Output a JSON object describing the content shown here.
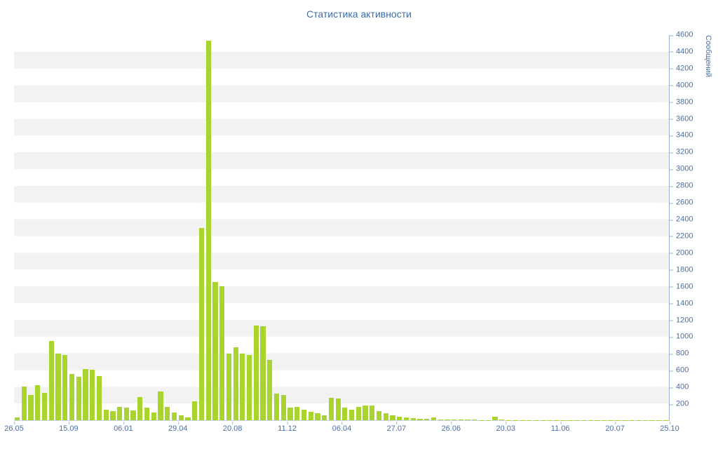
{
  "title": "Статистика активности",
  "chart_data": {
    "type": "bar",
    "title": "Статистика активности",
    "xlabel": "",
    "ylabel": "Сообщений",
    "ylim": [
      0,
      4600
    ],
    "ytick_step": 200,
    "grid": "alternating horizontal 200-unit bands (white / light gray)",
    "legend": null,
    "x_tick_labels": [
      "26.05",
      "15.09",
      "06.01",
      "29.04",
      "20.08",
      "11.12",
      "06.04",
      "27.07",
      "26.06",
      "20.03",
      "11.06",
      "20.07",
      "25.10"
    ],
    "values": [
      30,
      400,
      300,
      420,
      330,
      950,
      800,
      780,
      550,
      520,
      610,
      600,
      530,
      130,
      110,
      160,
      150,
      120,
      280,
      150,
      90,
      340,
      160,
      90,
      60,
      30,
      230,
      2300,
      4530,
      1650,
      1600,
      800,
      870,
      800,
      780,
      1130,
      1120,
      720,
      320,
      300,
      150,
      160,
      130,
      100,
      80,
      60,
      270,
      260,
      150,
      130,
      160,
      180,
      180,
      110,
      80,
      60,
      40,
      30,
      25,
      20,
      15,
      30,
      10,
      8,
      10,
      8,
      6,
      5,
      4,
      4,
      40,
      6,
      4,
      3,
      3,
      3,
      2,
      2,
      2,
      2,
      2,
      2,
      2,
      3,
      2,
      2,
      2,
      2,
      2,
      2,
      2,
      2,
      2,
      2,
      2,
      3
    ]
  },
  "colors": {
    "bar": "#a9d32e",
    "band": "#f2f2f2",
    "axis_line": "#9db1d4",
    "axis_text": "#4a6fa5",
    "title_text": "#3c6ca8",
    "background": "#ffffff"
  }
}
